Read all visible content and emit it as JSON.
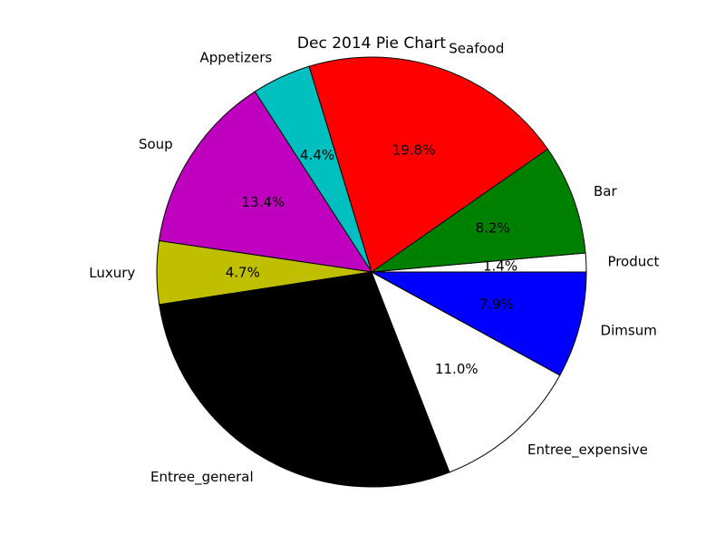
{
  "chart_data": {
    "type": "pie",
    "title": "Dec 2014 Pie Chart",
    "start_angle_deg": 0,
    "direction": "counterclockwise",
    "slices": [
      {
        "label": "Product",
        "value": 1.4,
        "pct_label": "1.4%",
        "color": "#ffffff"
      },
      {
        "label": "Bar",
        "value": 8.2,
        "pct_label": "8.2%",
        "color": "#008000"
      },
      {
        "label": "Seafood",
        "value": 19.8,
        "pct_label": "19.8%",
        "color": "#ff0000"
      },
      {
        "label": "Appetizers",
        "value": 4.4,
        "pct_label": "4.4%",
        "color": "#00bfbf"
      },
      {
        "label": "Soup",
        "value": 13.4,
        "pct_label": "13.4%",
        "color": "#bf00bf"
      },
      {
        "label": "Luxury",
        "value": 4.7,
        "pct_label": "4.7%",
        "color": "#bfbf00"
      },
      {
        "label": "Entree_general",
        "value": 28.2,
        "pct_label": "",
        "color": "#000000"
      },
      {
        "label": "Entree_expensive",
        "value": 11.0,
        "pct_label": "11.0%",
        "color": "#ffffff"
      },
      {
        "label": "Dimsum",
        "value": 7.9,
        "pct_label": "7.9%",
        "color": "#0000ff"
      }
    ]
  }
}
